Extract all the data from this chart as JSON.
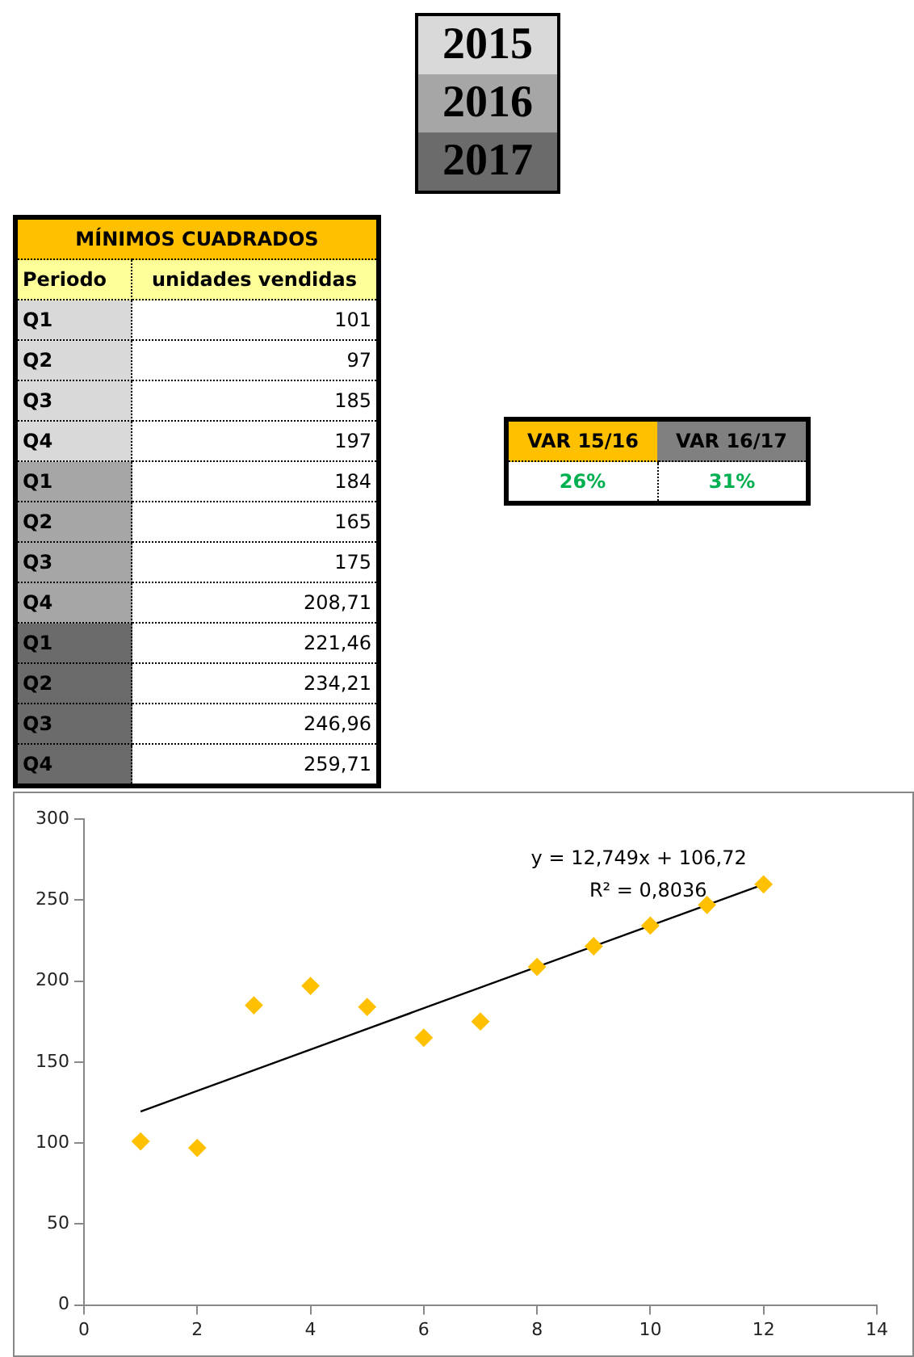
{
  "chart_data": {
    "type": "scatter",
    "x": [
      1,
      2,
      3,
      4,
      5,
      6,
      7,
      8,
      9,
      10,
      11,
      12
    ],
    "series": [
      {
        "type": "scatter",
        "color": "#ffc000",
        "marker": "diamond",
        "values": [
          101,
          97,
          185,
          197,
          184,
          165,
          175,
          208.71,
          221.46,
          234.21,
          246.96,
          259.71
        ]
      },
      {
        "type": "line",
        "color": "#000000",
        "marker": "none",
        "x": [
          1,
          12
        ],
        "values": [
          119.47,
          259.71
        ]
      }
    ],
    "xlim": [
      0,
      14
    ],
    "xticks": [
      0,
      2,
      4,
      6,
      8,
      10,
      12,
      14
    ],
    "ylim": [
      0,
      300
    ],
    "yticks": [
      0,
      50,
      100,
      150,
      200,
      250,
      300
    ],
    "legend": false,
    "annotations": [
      "2015",
      "2016",
      "2017",
      "MÍNIMOS CUADRADOS",
      "Periodo",
      "unidades vendidas",
      "Q1",
      "Q2",
      "Q3",
      "Q4",
      "Q1",
      "Q2",
      "Q3",
      "Q4",
      "Q1",
      "Q2",
      "Q3",
      "Q4",
      "VAR 15/16",
      "VAR 16/17",
      "26%",
      "31%",
      "y = 12,749x + 106,72",
      "R² = 0,8036",
      "101",
      "97",
      "185",
      "197",
      "184",
      "165",
      "175",
      "208,71",
      "221,46",
      "234,21",
      "246,96",
      "259,71"
    ]
  }
}
